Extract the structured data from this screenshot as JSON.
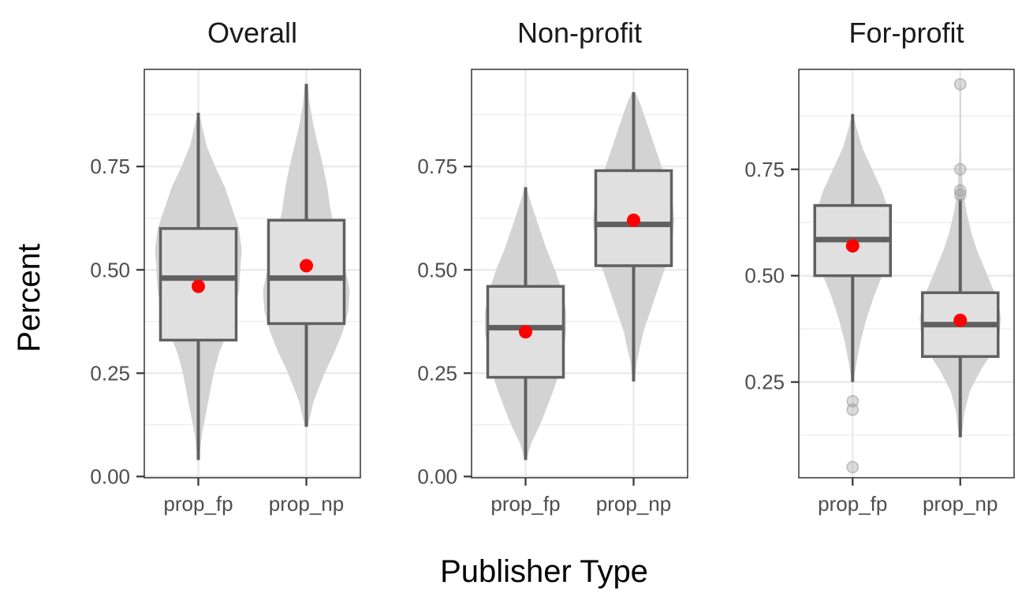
{
  "chart_data": {
    "type": "violin-box",
    "xlabel": "Publisher Type",
    "ylabel": "Percent",
    "categories": [
      "prop_fp",
      "prop_np"
    ],
    "colors": {
      "violin": "#d3d3d3",
      "box_fill": "#e0e0e0",
      "box_stroke": "#606060",
      "mean_point": "#ff0000",
      "outlier": "#9e9e9e",
      "grid": "#ebebeb",
      "panel_border": "#333333"
    },
    "legend": "none",
    "grid": true,
    "panels": [
      {
        "title": "Overall",
        "ylim": [
          -0.003,
          0.985
        ],
        "yticks": [
          0.0,
          0.25,
          0.5,
          0.75
        ],
        "ytick_labels": [
          "0.00",
          "0.25",
          "0.50",
          "0.75"
        ],
        "series": [
          {
            "category": "prop_fp",
            "min": 0.04,
            "q1": 0.33,
            "median": 0.48,
            "q3": 0.6,
            "max": 0.88,
            "mean": 0.46,
            "outliers": [],
            "violin": [
              [
                0.04,
                0.01
              ],
              [
                0.1,
                0.05
              ],
              [
                0.18,
                0.14
              ],
              [
                0.25,
                0.22
              ],
              [
                0.3,
                0.3
              ],
              [
                0.35,
                0.42
              ],
              [
                0.4,
                0.52
              ],
              [
                0.45,
                0.58
              ],
              [
                0.5,
                0.6
              ],
              [
                0.55,
                0.62
              ],
              [
                0.6,
                0.58
              ],
              [
                0.65,
                0.48
              ],
              [
                0.7,
                0.38
              ],
              [
                0.75,
                0.24
              ],
              [
                0.8,
                0.12
              ],
              [
                0.85,
                0.05
              ],
              [
                0.88,
                0.01
              ]
            ]
          },
          {
            "category": "prop_np",
            "min": 0.12,
            "q1": 0.37,
            "median": 0.48,
            "q3": 0.62,
            "max": 0.95,
            "mean": 0.51,
            "outliers": [],
            "violin": [
              [
                0.12,
                0.02
              ],
              [
                0.18,
                0.1
              ],
              [
                0.25,
                0.26
              ],
              [
                0.3,
                0.4
              ],
              [
                0.35,
                0.52
              ],
              [
                0.4,
                0.6
              ],
              [
                0.45,
                0.62
              ],
              [
                0.5,
                0.56
              ],
              [
                0.55,
                0.48
              ],
              [
                0.6,
                0.4
              ],
              [
                0.65,
                0.34
              ],
              [
                0.7,
                0.3
              ],
              [
                0.75,
                0.24
              ],
              [
                0.8,
                0.17
              ],
              [
                0.85,
                0.1
              ],
              [
                0.9,
                0.05
              ],
              [
                0.95,
                0.02
              ]
            ]
          }
        ]
      },
      {
        "title": "Non-profit",
        "ylim": [
          -0.003,
          0.985
        ],
        "yticks": [
          0.0,
          0.25,
          0.5,
          0.75
        ],
        "ytick_labels": [
          "0.00",
          "0.25",
          "0.50",
          "0.75"
        ],
        "series": [
          {
            "category": "prop_fp",
            "min": 0.04,
            "q1": 0.24,
            "median": 0.36,
            "q3": 0.46,
            "max": 0.7,
            "mean": 0.35,
            "outliers": [],
            "violin": [
              [
                0.04,
                0.01
              ],
              [
                0.08,
                0.08
              ],
              [
                0.13,
                0.22
              ],
              [
                0.2,
                0.38
              ],
              [
                0.25,
                0.48
              ],
              [
                0.3,
                0.54
              ],
              [
                0.35,
                0.58
              ],
              [
                0.4,
                0.58
              ],
              [
                0.45,
                0.52
              ],
              [
                0.5,
                0.42
              ],
              [
                0.55,
                0.3
              ],
              [
                0.6,
                0.2
              ],
              [
                0.65,
                0.1
              ],
              [
                0.7,
                0.01
              ]
            ]
          },
          {
            "category": "prop_np",
            "min": 0.23,
            "q1": 0.51,
            "median": 0.61,
            "q3": 0.74,
            "max": 0.93,
            "mean": 0.62,
            "outliers": [],
            "violin": [
              [
                0.23,
                0.01
              ],
              [
                0.28,
                0.05
              ],
              [
                0.35,
                0.14
              ],
              [
                0.42,
                0.28
              ],
              [
                0.48,
                0.4
              ],
              [
                0.53,
                0.5
              ],
              [
                0.58,
                0.56
              ],
              [
                0.62,
                0.58
              ],
              [
                0.66,
                0.56
              ],
              [
                0.7,
                0.5
              ],
              [
                0.75,
                0.4
              ],
              [
                0.8,
                0.3
              ],
              [
                0.85,
                0.2
              ],
              [
                0.9,
                0.1
              ],
              [
                0.93,
                0.02
              ]
            ]
          }
        ]
      },
      {
        "title": "For-profit",
        "ylim": [
          0.025,
          0.985
        ],
        "yticks": [
          0.25,
          0.5,
          0.75
        ],
        "ytick_labels": [
          "0.25",
          "0.50",
          "0.75"
        ],
        "series": [
          {
            "category": "prop_fp",
            "min": 0.25,
            "q1": 0.5,
            "median": 0.585,
            "q3": 0.665,
            "max": 0.88,
            "mean": 0.57,
            "outliers": [
              0.05,
              0.185,
              0.205
            ],
            "violin": [
              [
                0.25,
                0.01
              ],
              [
                0.3,
                0.06
              ],
              [
                0.35,
                0.12
              ],
              [
                0.4,
                0.2
              ],
              [
                0.45,
                0.3
              ],
              [
                0.5,
                0.42
              ],
              [
                0.55,
                0.52
              ],
              [
                0.6,
                0.56
              ],
              [
                0.65,
                0.52
              ],
              [
                0.7,
                0.42
              ],
              [
                0.75,
                0.28
              ],
              [
                0.8,
                0.14
              ],
              [
                0.85,
                0.05
              ],
              [
                0.88,
                0.01
              ]
            ]
          },
          {
            "category": "prop_np",
            "min": 0.12,
            "q1": 0.31,
            "median": 0.385,
            "q3": 0.46,
            "max": 0.68,
            "mean": 0.395,
            "outliers": [
              0.69,
              0.7,
              0.75,
              0.95
            ],
            "violin": [
              [
                0.12,
                0.02
              ],
              [
                0.18,
                0.06
              ],
              [
                0.23,
                0.14
              ],
              [
                0.28,
                0.3
              ],
              [
                0.32,
                0.46
              ],
              [
                0.36,
                0.56
              ],
              [
                0.4,
                0.58
              ],
              [
                0.44,
                0.54
              ],
              [
                0.48,
                0.44
              ],
              [
                0.52,
                0.34
              ],
              [
                0.56,
                0.24
              ],
              [
                0.6,
                0.16
              ],
              [
                0.65,
                0.09
              ],
              [
                0.7,
                0.04
              ],
              [
                0.75,
                0.02
              ],
              [
                0.82,
                0.01
              ],
              [
                0.95,
                0.01
              ]
            ]
          }
        ]
      }
    ]
  }
}
